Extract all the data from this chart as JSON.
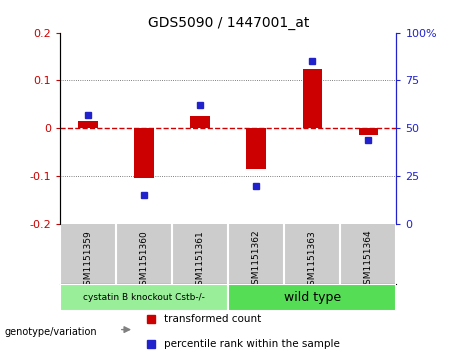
{
  "title": "GDS5090 / 1447001_at",
  "samples": [
    "GSM1151359",
    "GSM1151360",
    "GSM1151361",
    "GSM1151362",
    "GSM1151363",
    "GSM1151364"
  ],
  "bar_values": [
    0.015,
    -0.105,
    0.025,
    -0.085,
    0.125,
    -0.015
  ],
  "scatter_values": [
    57,
    15,
    62,
    20,
    85,
    44
  ],
  "ylim_left": [
    -0.2,
    0.2
  ],
  "ylim_right": [
    0,
    100
  ],
  "yticks_left": [
    -0.2,
    -0.1,
    0.0,
    0.1,
    0.2
  ],
  "yticks_right": [
    0,
    25,
    50,
    75,
    100
  ],
  "ytick_labels_right": [
    "0",
    "25",
    "50",
    "75",
    "100%"
  ],
  "bar_color": "#cc0000",
  "scatter_color": "#2222cc",
  "zero_line_color": "#cc0000",
  "grid_color": "#555555",
  "group1_label": "cystatin B knockout Cstb-/-",
  "group2_label": "wild type",
  "group1_color": "#99ee99",
  "group2_color": "#55dd55",
  "legend_bar_label": "transformed count",
  "legend_scatter_label": "percentile rank within the sample",
  "genotype_label": "genotype/variation",
  "plot_bg_color": "#ffffff",
  "label_area_color": "#cccccc",
  "figsize": [
    4.61,
    3.63
  ],
  "dpi": 100
}
